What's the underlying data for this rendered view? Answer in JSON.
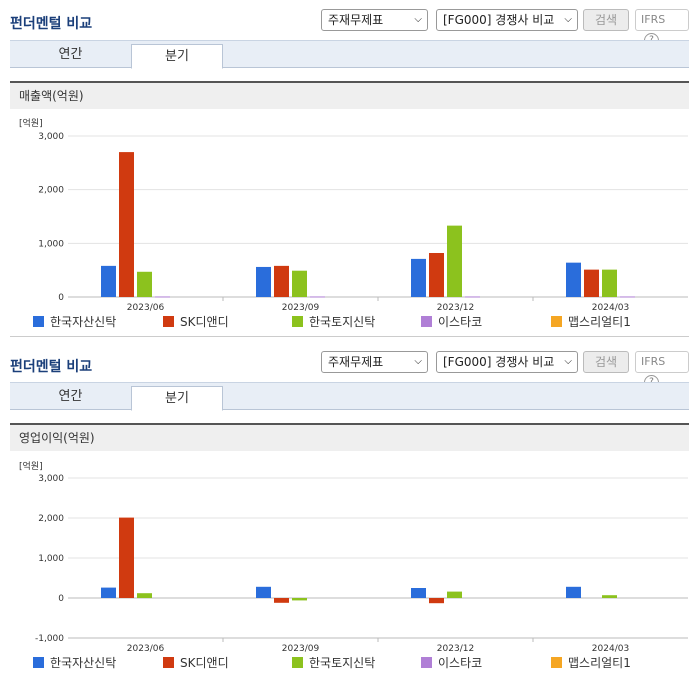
{
  "panels": [
    {
      "title": "펀더멘털 비교",
      "select1": "주재무제표",
      "select2": "[FG000] 경쟁사 비교",
      "search_label": "검색",
      "ifrs_label": "IFRS",
      "ifrs_help": "?",
      "tabs": [
        {
          "label": "연간",
          "active": false
        },
        {
          "label": "분기",
          "active": true
        }
      ],
      "section_title": "매출액(억원)",
      "chart_data": {
        "type": "bar",
        "unit_label": "[억원]",
        "categories": [
          "2023/06",
          "2023/09",
          "2023/12",
          "2024/03"
        ],
        "series": [
          {
            "name": "한국자산신탁",
            "color": "#2a6ddb",
            "values": [
              580,
              560,
              710,
              640
            ]
          },
          {
            "name": "SK디앤디",
            "color": "#d03a10",
            "values": [
              2700,
              580,
              820,
              510
            ]
          },
          {
            "name": "한국토지신탁",
            "color": "#8cc21e",
            "values": [
              470,
              490,
              1330,
              510
            ]
          },
          {
            "name": "이스타코",
            "color": "#b07fd6",
            "values": [
              10,
              10,
              10,
              10
            ]
          },
          {
            "name": "맵스리얼티1",
            "color": "#f5a623",
            "values": [
              0,
              0,
              0,
              0
            ]
          }
        ],
        "yticks": [
          {
            "v": 0,
            "label": "0"
          },
          {
            "v": 1000,
            "label": "1,000"
          },
          {
            "v": 2000,
            "label": "2,000"
          },
          {
            "v": 3000,
            "label": "3,000"
          }
        ],
        "ylim": [
          0,
          3000
        ],
        "legend_position": "bottom"
      }
    },
    {
      "title": "펀더멘털 비교",
      "select1": "주재무제표",
      "select2": "[FG000] 경쟁사 비교",
      "search_label": "검색",
      "ifrs_label": "IFRS",
      "ifrs_help": "?",
      "tabs": [
        {
          "label": "연간",
          "active": false
        },
        {
          "label": "분기",
          "active": true
        }
      ],
      "section_title": "영업이익(억원)",
      "chart_data": {
        "type": "bar",
        "unit_label": "[억원]",
        "categories": [
          "2023/06",
          "2023/09",
          "2023/12",
          "2024/03"
        ],
        "series": [
          {
            "name": "한국자산신탁",
            "color": "#2a6ddb",
            "values": [
              260,
              280,
              250,
              280
            ]
          },
          {
            "name": "SK디앤디",
            "color": "#d03a10",
            "values": [
              2010,
              -120,
              -130,
              0
            ]
          },
          {
            "name": "한국토지신탁",
            "color": "#8cc21e",
            "values": [
              120,
              -60,
              160,
              70
            ]
          },
          {
            "name": "이스타코",
            "color": "#b07fd6",
            "values": [
              0,
              0,
              0,
              0
            ]
          },
          {
            "name": "맵스리얼티1",
            "color": "#f5a623",
            "values": [
              0,
              0,
              0,
              0
            ]
          }
        ],
        "yticks": [
          {
            "v": -1000,
            "label": "-1,000"
          },
          {
            "v": 0,
            "label": "0"
          },
          {
            "v": 1000,
            "label": "1,000"
          },
          {
            "v": 2000,
            "label": "2,000"
          },
          {
            "v": 3000,
            "label": "3,000"
          }
        ],
        "ylim": [
          -1000,
          3000
        ],
        "legend_position": "bottom"
      }
    }
  ]
}
